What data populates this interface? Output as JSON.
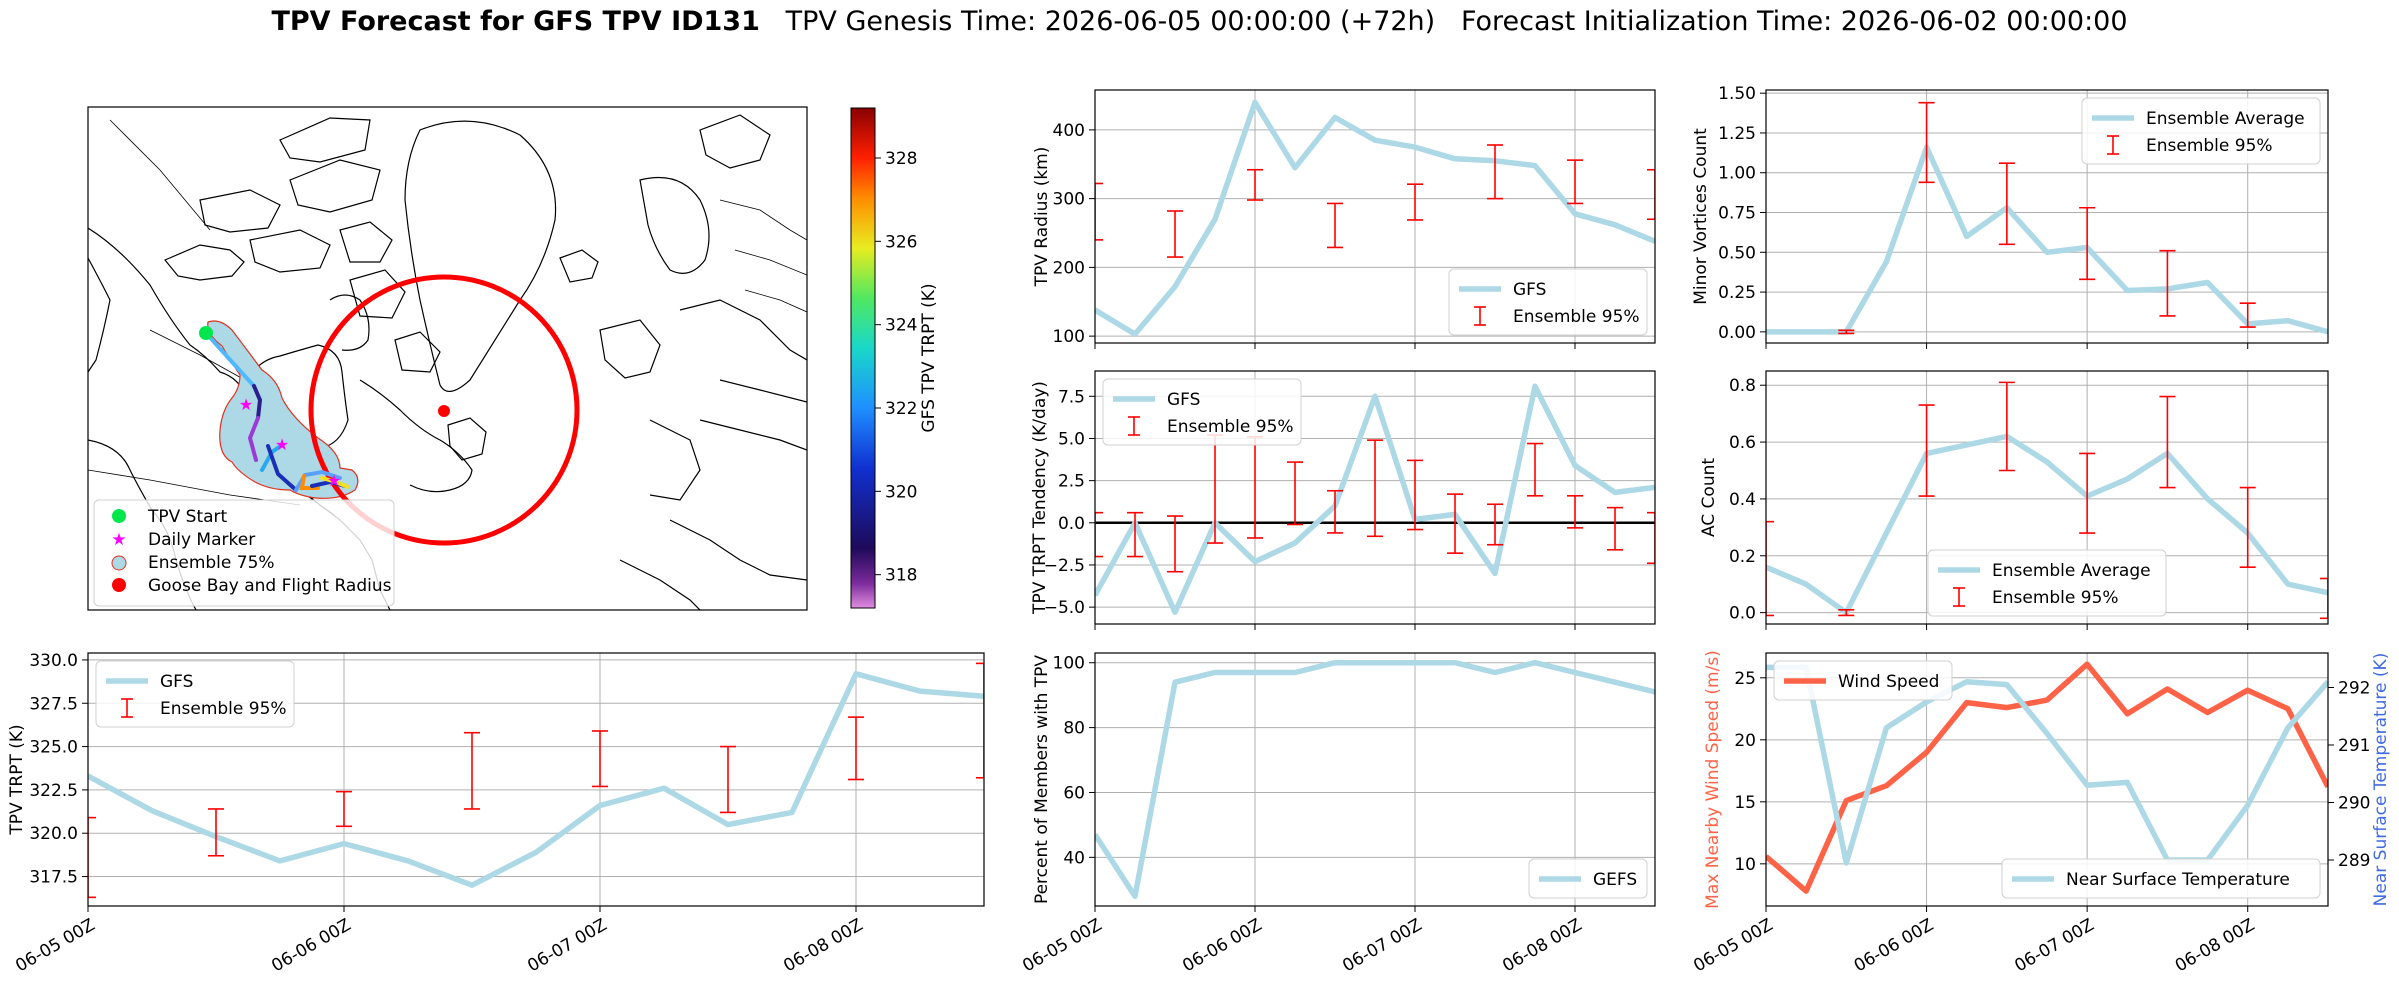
{
  "header": {
    "title_bold": "TPV Forecast for GFS TPV ID131",
    "title_rest": "TPV Genesis Time: 2026-06-05 00:00:00 (+72h)   Forecast Initialization Time: 2026-06-02 00:00:00"
  },
  "map": {
    "legend": [
      "TPV Start",
      "Daily Marker",
      "Ensemble 75%",
      "Goose Bay and Flight Radius"
    ],
    "colors": {
      "start": "#00e64d",
      "daily": "#ff00ff",
      "ensemble_fill": "#add8e6",
      "ensemble_edge": "#e0301e",
      "goose": "#ff0000"
    },
    "colorbar": {
      "label": "GFS TPV TRPT (K)",
      "ticks": [
        318,
        320,
        322,
        324,
        326,
        328
      ],
      "range": [
        317.2,
        329.2
      ]
    }
  },
  "colors": {
    "gfs": "#add8e6",
    "ens": "#ff0000",
    "wind": "#ff6347",
    "temp_axis": "#4169e1",
    "zero": "#000000"
  },
  "chart_data": [
    {
      "id": "trpt",
      "type": "line",
      "xlabel": "",
      "ylabel": "TPV TRPT (K)",
      "ylim": [
        315.8,
        330.4
      ],
      "yticks": [
        317.5,
        320.0,
        322.5,
        325.0,
        327.5,
        330.0
      ],
      "ytick_labels": [
        "317.5",
        "320.0",
        "322.5",
        "325.0",
        "327.5",
        "330.0"
      ],
      "x": [
        0,
        0.25,
        0.5,
        0.75,
        1,
        1.25,
        1.5,
        1.75,
        2,
        2.25,
        2.5,
        2.75,
        3,
        3.25,
        3.5
      ],
      "series": [
        {
          "name": "GFS",
          "values": [
            323.3,
            321.3,
            319.8,
            318.4,
            319.4,
            318.4,
            317.0,
            318.9,
            321.6,
            322.6,
            320.5,
            321.2,
            329.2,
            328.2,
            327.9
          ]
        }
      ],
      "errorbars": {
        "name": "Ensemble 95%",
        "x": [
          0,
          0.5,
          1,
          1.5,
          2,
          2.5,
          3,
          3.5
        ],
        "lower": [
          316.3,
          318.7,
          320.4,
          321.4,
          322.7,
          321.2,
          323.1,
          323.2
        ],
        "upper": [
          320.9,
          321.4,
          322.4,
          325.8,
          325.9,
          325.0,
          326.7,
          329.8
        ]
      },
      "legend": [
        "GFS",
        "Ensemble 95%"
      ],
      "legend_pos": "upper left"
    },
    {
      "id": "radius",
      "type": "line",
      "ylabel": "TPV Radius (km)",
      "ylim": [
        90,
        458
      ],
      "yticks": [
        100,
        200,
        300,
        400
      ],
      "ytick_labels": [
        "100",
        "200",
        "300",
        "400"
      ],
      "x": [
        0,
        0.25,
        0.5,
        0.75,
        1,
        1.25,
        1.5,
        1.75,
        2,
        2.25,
        2.5,
        2.75,
        3,
        3.25,
        3.5
      ],
      "series": [
        {
          "name": "GFS",
          "values": [
            138,
            103,
            172,
            270,
            440,
            345,
            418,
            385,
            375,
            358,
            355,
            348,
            278,
            262,
            238
          ]
        }
      ],
      "errorbars": {
        "name": "Ensemble 95%",
        "x": [
          0,
          0.5,
          1,
          1.5,
          2,
          2.5,
          3,
          3.5
        ],
        "lower": [
          240,
          215,
          298,
          229,
          269,
          300,
          293,
          270
        ],
        "upper": [
          322,
          282,
          342,
          293,
          321,
          378,
          356,
          342
        ]
      },
      "legend": [
        "GFS",
        "Ensemble 95%"
      ],
      "legend_pos": "lower right"
    },
    {
      "id": "tendency",
      "type": "line",
      "ylabel": "TPV TRPT Tendency (K/day)",
      "ylim": [
        -6.0,
        9.0
      ],
      "yticks": [
        -5.0,
        -2.5,
        0.0,
        2.5,
        5.0,
        7.5
      ],
      "ytick_labels": [
        "−5.0",
        "−2.5",
        "0.0",
        "2.5",
        "5.0",
        "7.5"
      ],
      "x": [
        0,
        0.25,
        0.5,
        0.75,
        1,
        1.25,
        1.5,
        1.75,
        2,
        2.25,
        2.5,
        2.75,
        3,
        3.25,
        3.5
      ],
      "series": [
        {
          "name": "GFS",
          "values": [
            -4.3,
            0.0,
            -5.3,
            0.0,
            -2.3,
            -1.2,
            1.0,
            7.5,
            0.2,
            0.5,
            -3.0,
            8.1,
            3.4,
            1.8,
            2.1
          ]
        }
      ],
      "errorbars": {
        "name": "Ensemble 95%",
        "x": [
          0,
          0.25,
          0.5,
          0.75,
          1,
          1.25,
          1.5,
          1.75,
          2,
          2.25,
          2.5,
          2.75,
          3,
          3.25,
          3.5
        ],
        "lower": [
          -2.0,
          -2.0,
          -2.9,
          -1.2,
          -0.9,
          -0.1,
          -0.6,
          -0.8,
          -0.4,
          -1.8,
          -1.3,
          1.6,
          -0.3,
          -1.6,
          -2.4
        ],
        "upper": [
          0.6,
          0.6,
          0.4,
          5.2,
          5.1,
          3.6,
          1.9,
          4.9,
          3.7,
          1.7,
          1.1,
          4.7,
          1.6,
          0.9,
          0.6
        ]
      },
      "hline": 0,
      "legend": [
        "GFS",
        "Ensemble 95%"
      ],
      "legend_pos": "upper left"
    },
    {
      "id": "members",
      "type": "line",
      "ylabel": "Percent of Members with TPV",
      "ylim": [
        25,
        103
      ],
      "yticks": [
        40,
        60,
        80,
        100
      ],
      "ytick_labels": [
        "40",
        "60",
        "80",
        "100"
      ],
      "x": [
        0,
        0.25,
        0.5,
        0.75,
        1,
        1.25,
        1.5,
        1.75,
        2,
        2.25,
        2.5,
        2.75,
        3,
        3.25,
        3.5
      ],
      "series": [
        {
          "name": "GEFS",
          "values": [
            47,
            28,
            94,
            97,
            97,
            97,
            100,
            100,
            100,
            100,
            97,
            100,
            97,
            94,
            91
          ]
        }
      ],
      "legend": [
        "GEFS"
      ],
      "legend_pos": "lower right"
    },
    {
      "id": "minor",
      "type": "line",
      "ylabel": "Minor Vortices Count",
      "ylim": [
        -0.07,
        1.52
      ],
      "yticks": [
        0.0,
        0.25,
        0.5,
        0.75,
        1.0,
        1.25,
        1.5
      ],
      "ytick_labels": [
        "0.00",
        "0.25",
        "0.50",
        "0.75",
        "1.00",
        "1.25",
        "1.50"
      ],
      "x": [
        0,
        0.25,
        0.5,
        0.75,
        1,
        1.25,
        1.5,
        1.75,
        2,
        2.25,
        2.5,
        2.75,
        3,
        3.25,
        3.5
      ],
      "series": [
        {
          "name": "Ensemble Average",
          "values": [
            0.0,
            0.0,
            0.0,
            0.44,
            1.16,
            0.6,
            0.78,
            0.5,
            0.53,
            0.26,
            0.27,
            0.31,
            0.05,
            0.07,
            0.0
          ]
        }
      ],
      "errorbars": {
        "name": "Ensemble 95%",
        "x": [
          0.5,
          1,
          1.5,
          2,
          2.5,
          3
        ],
        "lower": [
          -0.01,
          0.94,
          0.55,
          0.33,
          0.1,
          0.03
        ],
        "upper": [
          0.01,
          1.44,
          1.06,
          0.78,
          0.51,
          0.18
        ]
      },
      "legend": [
        "Ensemble Average",
        "Ensemble 95%"
      ],
      "legend_pos": "upper right"
    },
    {
      "id": "ac",
      "type": "line",
      "ylabel": "AC Count",
      "ylim": [
        -0.04,
        0.85
      ],
      "yticks": [
        0.0,
        0.2,
        0.4,
        0.6,
        0.8
      ],
      "ytick_labels": [
        "0.0",
        "0.2",
        "0.4",
        "0.6",
        "0.8"
      ],
      "x": [
        0,
        0.25,
        0.5,
        0.75,
        1,
        1.25,
        1.5,
        1.75,
        2,
        2.25,
        2.5,
        2.75,
        3,
        3.25,
        3.5
      ],
      "series": [
        {
          "name": "Ensemble Average",
          "values": [
            0.16,
            0.1,
            0.0,
            0.28,
            0.56,
            0.59,
            0.62,
            0.53,
            0.41,
            0.47,
            0.56,
            0.4,
            0.28,
            0.1,
            0.07
          ]
        }
      ],
      "errorbars": {
        "name": "Ensemble 95%",
        "x": [
          0,
          0.5,
          1,
          1.5,
          2,
          2.5,
          3,
          3.5
        ],
        "lower": [
          -0.01,
          -0.01,
          0.41,
          0.5,
          0.28,
          0.44,
          0.16,
          -0.02
        ],
        "upper": [
          0.32,
          0.01,
          0.73,
          0.81,
          0.56,
          0.76,
          0.44,
          0.12
        ]
      },
      "legend": [
        "Ensemble Average",
        "Ensemble 95%"
      ],
      "legend_pos": "lower center"
    },
    {
      "id": "wind",
      "type": "line",
      "ylabel": "Max Nearby Wind Speed (m/s)",
      "y2label": "Near Surface Temperature (K)",
      "ylim": [
        6.6,
        27.0
      ],
      "yticks": [
        10,
        15,
        20,
        25
      ],
      "ytick_labels": [
        "10",
        "15",
        "20",
        "25"
      ],
      "y2lim": [
        288.2,
        292.6
      ],
      "y2ticks": [
        289,
        290,
        291,
        292
      ],
      "y2tick_labels": [
        "289",
        "290",
        "291",
        "292"
      ],
      "x": [
        0,
        0.25,
        0.5,
        0.75,
        1,
        1.25,
        1.5,
        1.75,
        2,
        2.25,
        2.5,
        2.75,
        3,
        3.25,
        3.5
      ],
      "series": [
        {
          "name": "Wind Speed",
          "axis": "left",
          "values": [
            10.6,
            7.8,
            15.1,
            16.3,
            19.0,
            23.0,
            22.6,
            23.2,
            26.1,
            22.1,
            24.1,
            22.2,
            24.0,
            22.5,
            16.2
          ]
        },
        {
          "name": "Near Surface Temperature",
          "axis": "right",
          "values": [
            292.35,
            292.35,
            288.95,
            291.3,
            291.75,
            292.1,
            292.05,
            291.2,
            290.3,
            290.35,
            289.0,
            289.0,
            289.95,
            291.3,
            292.1
          ]
        }
      ],
      "legend_left": [
        "Wind Speed"
      ],
      "legend_right": [
        "Near Surface Temperature"
      ]
    }
  ],
  "xtick_labels": [
    "06-05 00Z",
    "06-06 00Z",
    "06-07 00Z",
    "06-08 00Z"
  ]
}
